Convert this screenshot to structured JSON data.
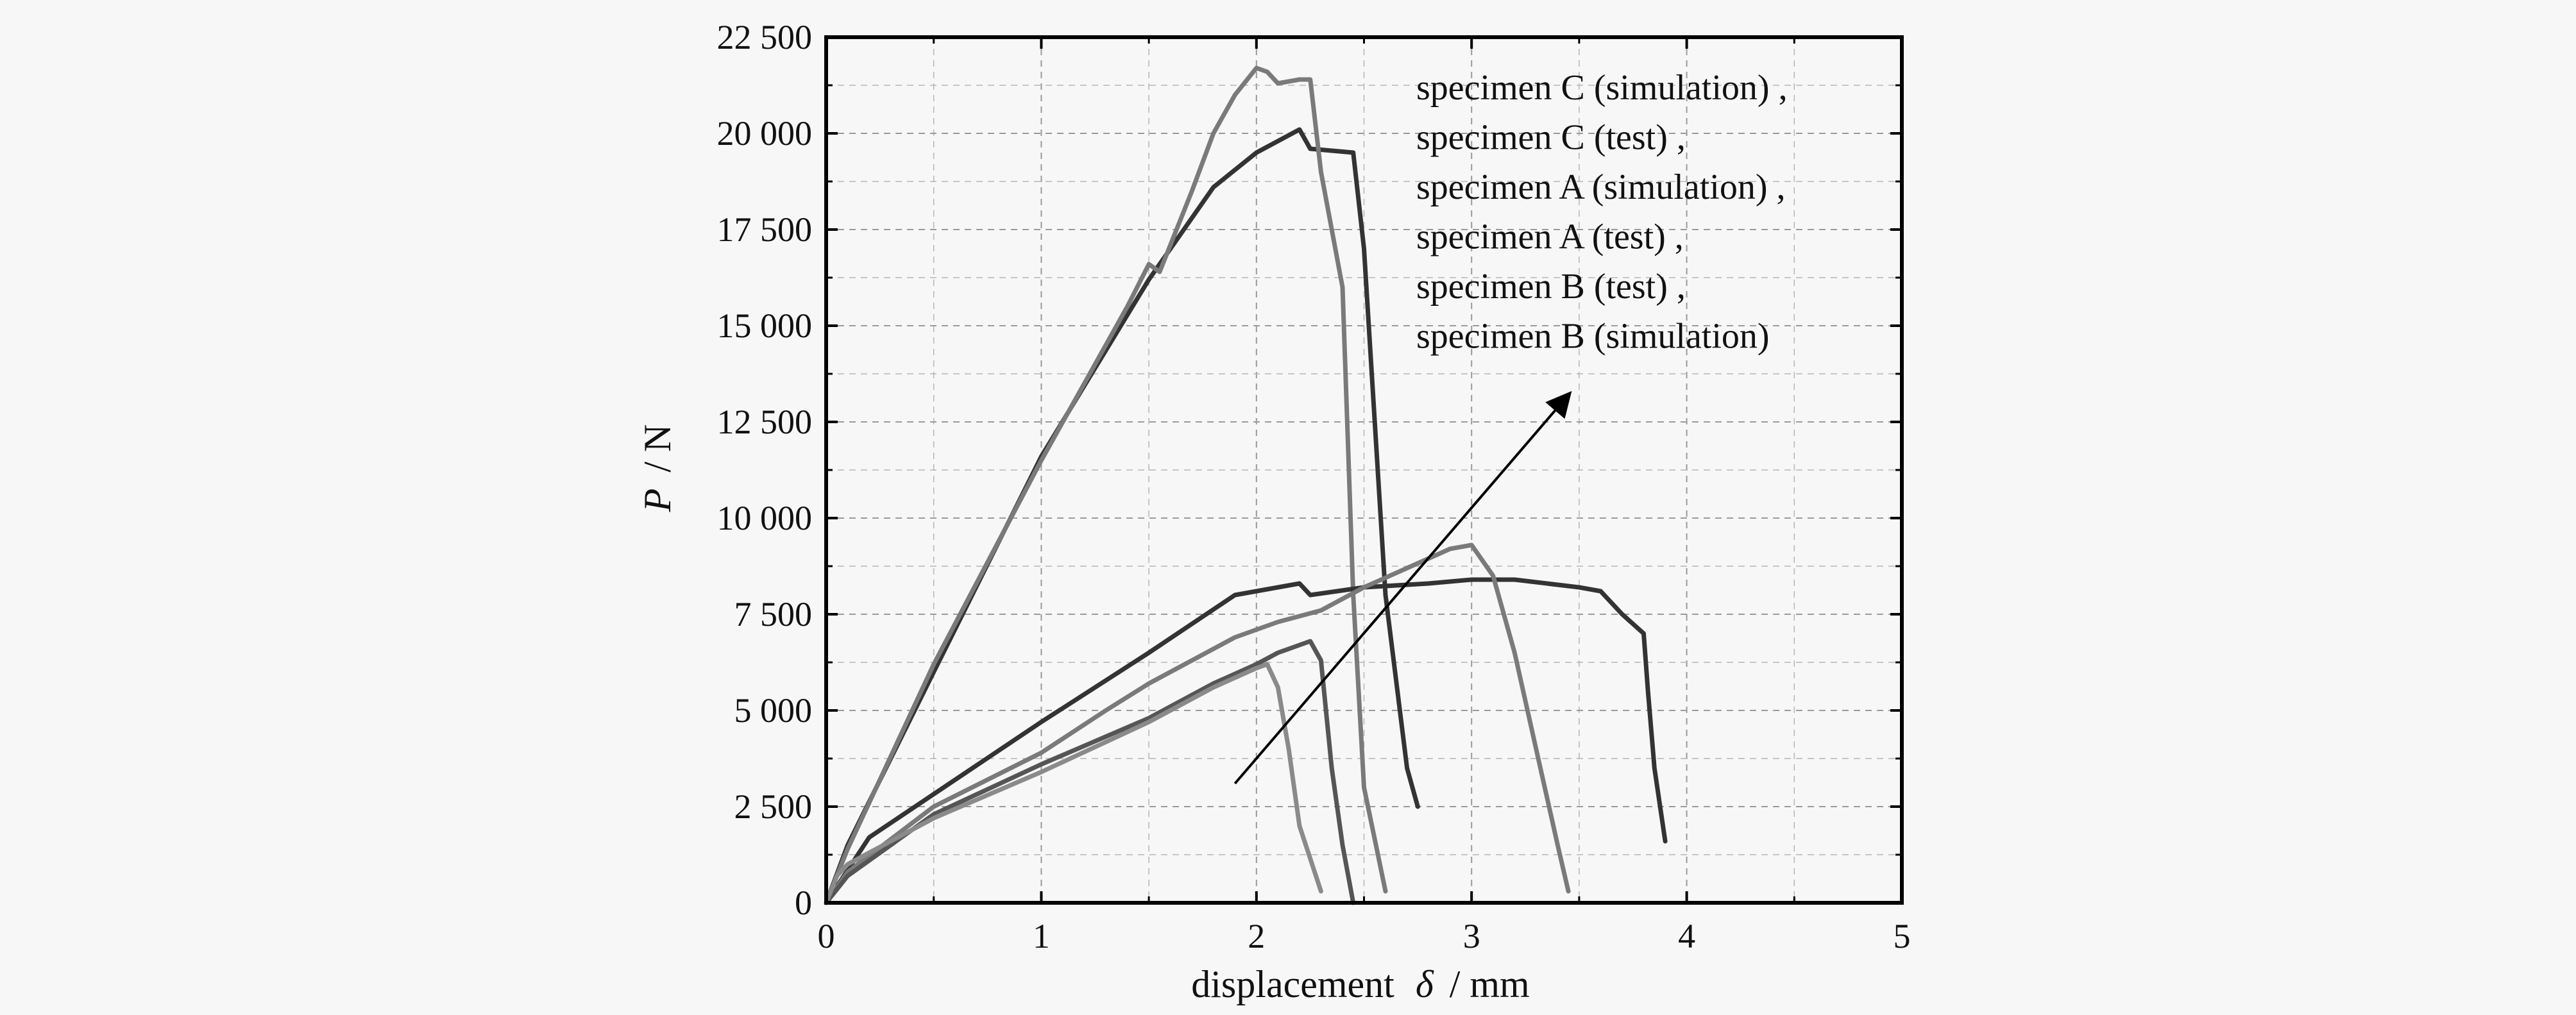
{
  "chart_data": {
    "type": "line",
    "xlabel_main": "displacement",
    "xlabel_symbol": "δ",
    "xlabel_unit": "/ mm",
    "ylabel_symbol": "P",
    "ylabel_unit": "/ N",
    "xlim": [
      0,
      5
    ],
    "ylim": [
      0,
      22500
    ],
    "x_ticks": [
      0,
      1,
      2,
      3,
      4,
      5
    ],
    "x_tick_labels": [
      "0",
      "1",
      "2",
      "3",
      "4",
      "5"
    ],
    "y_ticks": [
      0,
      2500,
      5000,
      7500,
      10000,
      12500,
      15000,
      17500,
      20000,
      22500
    ],
    "y_tick_labels": [
      "0",
      "2 500",
      "5 000",
      "7 500",
      "10 000",
      "12 500",
      "15 000",
      "17 500",
      "20 000",
      "22 500"
    ],
    "grid": true,
    "legend_position": "top-right",
    "legend_entries": [
      "specimen C (simulation) ,",
      "specimen C (test) ,",
      "specimen A (simulation) ,",
      "specimen A (test) ,",
      "specimen B (test) ,",
      "specimen B (simulation)"
    ],
    "series": [
      {
        "color": "#333333",
        "points": [
          [
            0,
            0
          ],
          [
            0.1,
            1500
          ],
          [
            0.5,
            6000
          ],
          [
            1,
            11600
          ],
          [
            1.5,
            16200
          ],
          [
            1.8,
            18600
          ],
          [
            2.0,
            19500
          ],
          [
            2.2,
            20100
          ],
          [
            2.25,
            19600
          ],
          [
            2.45,
            19500
          ],
          [
            2.5,
            17000
          ],
          [
            2.6,
            8000
          ],
          [
            2.7,
            3500
          ],
          [
            2.75,
            2500
          ]
        ]
      },
      {
        "color": "#7a7a7a",
        "points": [
          [
            0,
            0
          ],
          [
            0.1,
            1400
          ],
          [
            0.5,
            6200
          ],
          [
            1,
            11500
          ],
          [
            1.4,
            15500
          ],
          [
            1.5,
            16600
          ],
          [
            1.55,
            16400
          ],
          [
            1.7,
            18500
          ],
          [
            1.8,
            20000
          ],
          [
            1.9,
            21000
          ],
          [
            2.0,
            21700
          ],
          [
            2.05,
            21600
          ],
          [
            2.1,
            21300
          ],
          [
            2.2,
            21400
          ],
          [
            2.25,
            21400
          ],
          [
            2.3,
            19000
          ],
          [
            2.4,
            16000
          ],
          [
            2.45,
            8000
          ],
          [
            2.5,
            3000
          ],
          [
            2.6,
            300
          ]
        ]
      },
      {
        "color": "#333333",
        "points": [
          [
            0,
            0
          ],
          [
            0.2,
            1700
          ],
          [
            1,
            4700
          ],
          [
            1.5,
            6500
          ],
          [
            1.9,
            8000
          ],
          [
            2.1,
            8200
          ],
          [
            2.2,
            8300
          ],
          [
            2.25,
            8000
          ],
          [
            2.5,
            8200
          ],
          [
            2.8,
            8300
          ],
          [
            3.0,
            8400
          ],
          [
            3.2,
            8400
          ],
          [
            3.5,
            8200
          ],
          [
            3.6,
            8100
          ],
          [
            3.7,
            7500
          ],
          [
            3.8,
            7000
          ],
          [
            3.82,
            5500
          ],
          [
            3.85,
            3500
          ],
          [
            3.9,
            1600
          ]
        ]
      },
      {
        "color": "#7a7a7a",
        "points": [
          [
            0,
            0
          ],
          [
            0.1,
            800
          ],
          [
            0.5,
            2500
          ],
          [
            1,
            3900
          ],
          [
            1.3,
            5000
          ],
          [
            1.5,
            5700
          ],
          [
            1.7,
            6300
          ],
          [
            1.9,
            6900
          ],
          [
            2.1,
            7300
          ],
          [
            2.3,
            7600
          ],
          [
            2.5,
            8200
          ],
          [
            2.7,
            8700
          ],
          [
            2.9,
            9200
          ],
          [
            3.0,
            9300
          ],
          [
            3.1,
            8500
          ],
          [
            3.2,
            6500
          ],
          [
            3.3,
            4000
          ],
          [
            3.4,
            1500
          ],
          [
            3.45,
            300
          ]
        ]
      },
      {
        "color": "#555555",
        "points": [
          [
            0,
            0
          ],
          [
            0.1,
            700
          ],
          [
            0.5,
            2300
          ],
          [
            1,
            3600
          ],
          [
            1.5,
            4800
          ],
          [
            1.8,
            5700
          ],
          [
            2.0,
            6200
          ],
          [
            2.1,
            6500
          ],
          [
            2.2,
            6700
          ],
          [
            2.25,
            6800
          ],
          [
            2.3,
            6300
          ],
          [
            2.35,
            3500
          ],
          [
            2.4,
            1500
          ],
          [
            2.45,
            0
          ]
        ]
      },
      {
        "color": "#8a8a8a",
        "points": [
          [
            0,
            0
          ],
          [
            0.05,
            700
          ],
          [
            0.1,
            1000
          ],
          [
            0.5,
            2200
          ],
          [
            1,
            3400
          ],
          [
            1.5,
            4700
          ],
          [
            1.8,
            5600
          ],
          [
            2.0,
            6100
          ],
          [
            2.05,
            6200
          ],
          [
            2.1,
            5600
          ],
          [
            2.15,
            4000
          ],
          [
            2.2,
            2000
          ],
          [
            2.3,
            300
          ]
        ]
      }
    ],
    "arrow": {
      "from": [
        1.9,
        3100
      ],
      "to": [
        3.45,
        13200
      ]
    }
  }
}
